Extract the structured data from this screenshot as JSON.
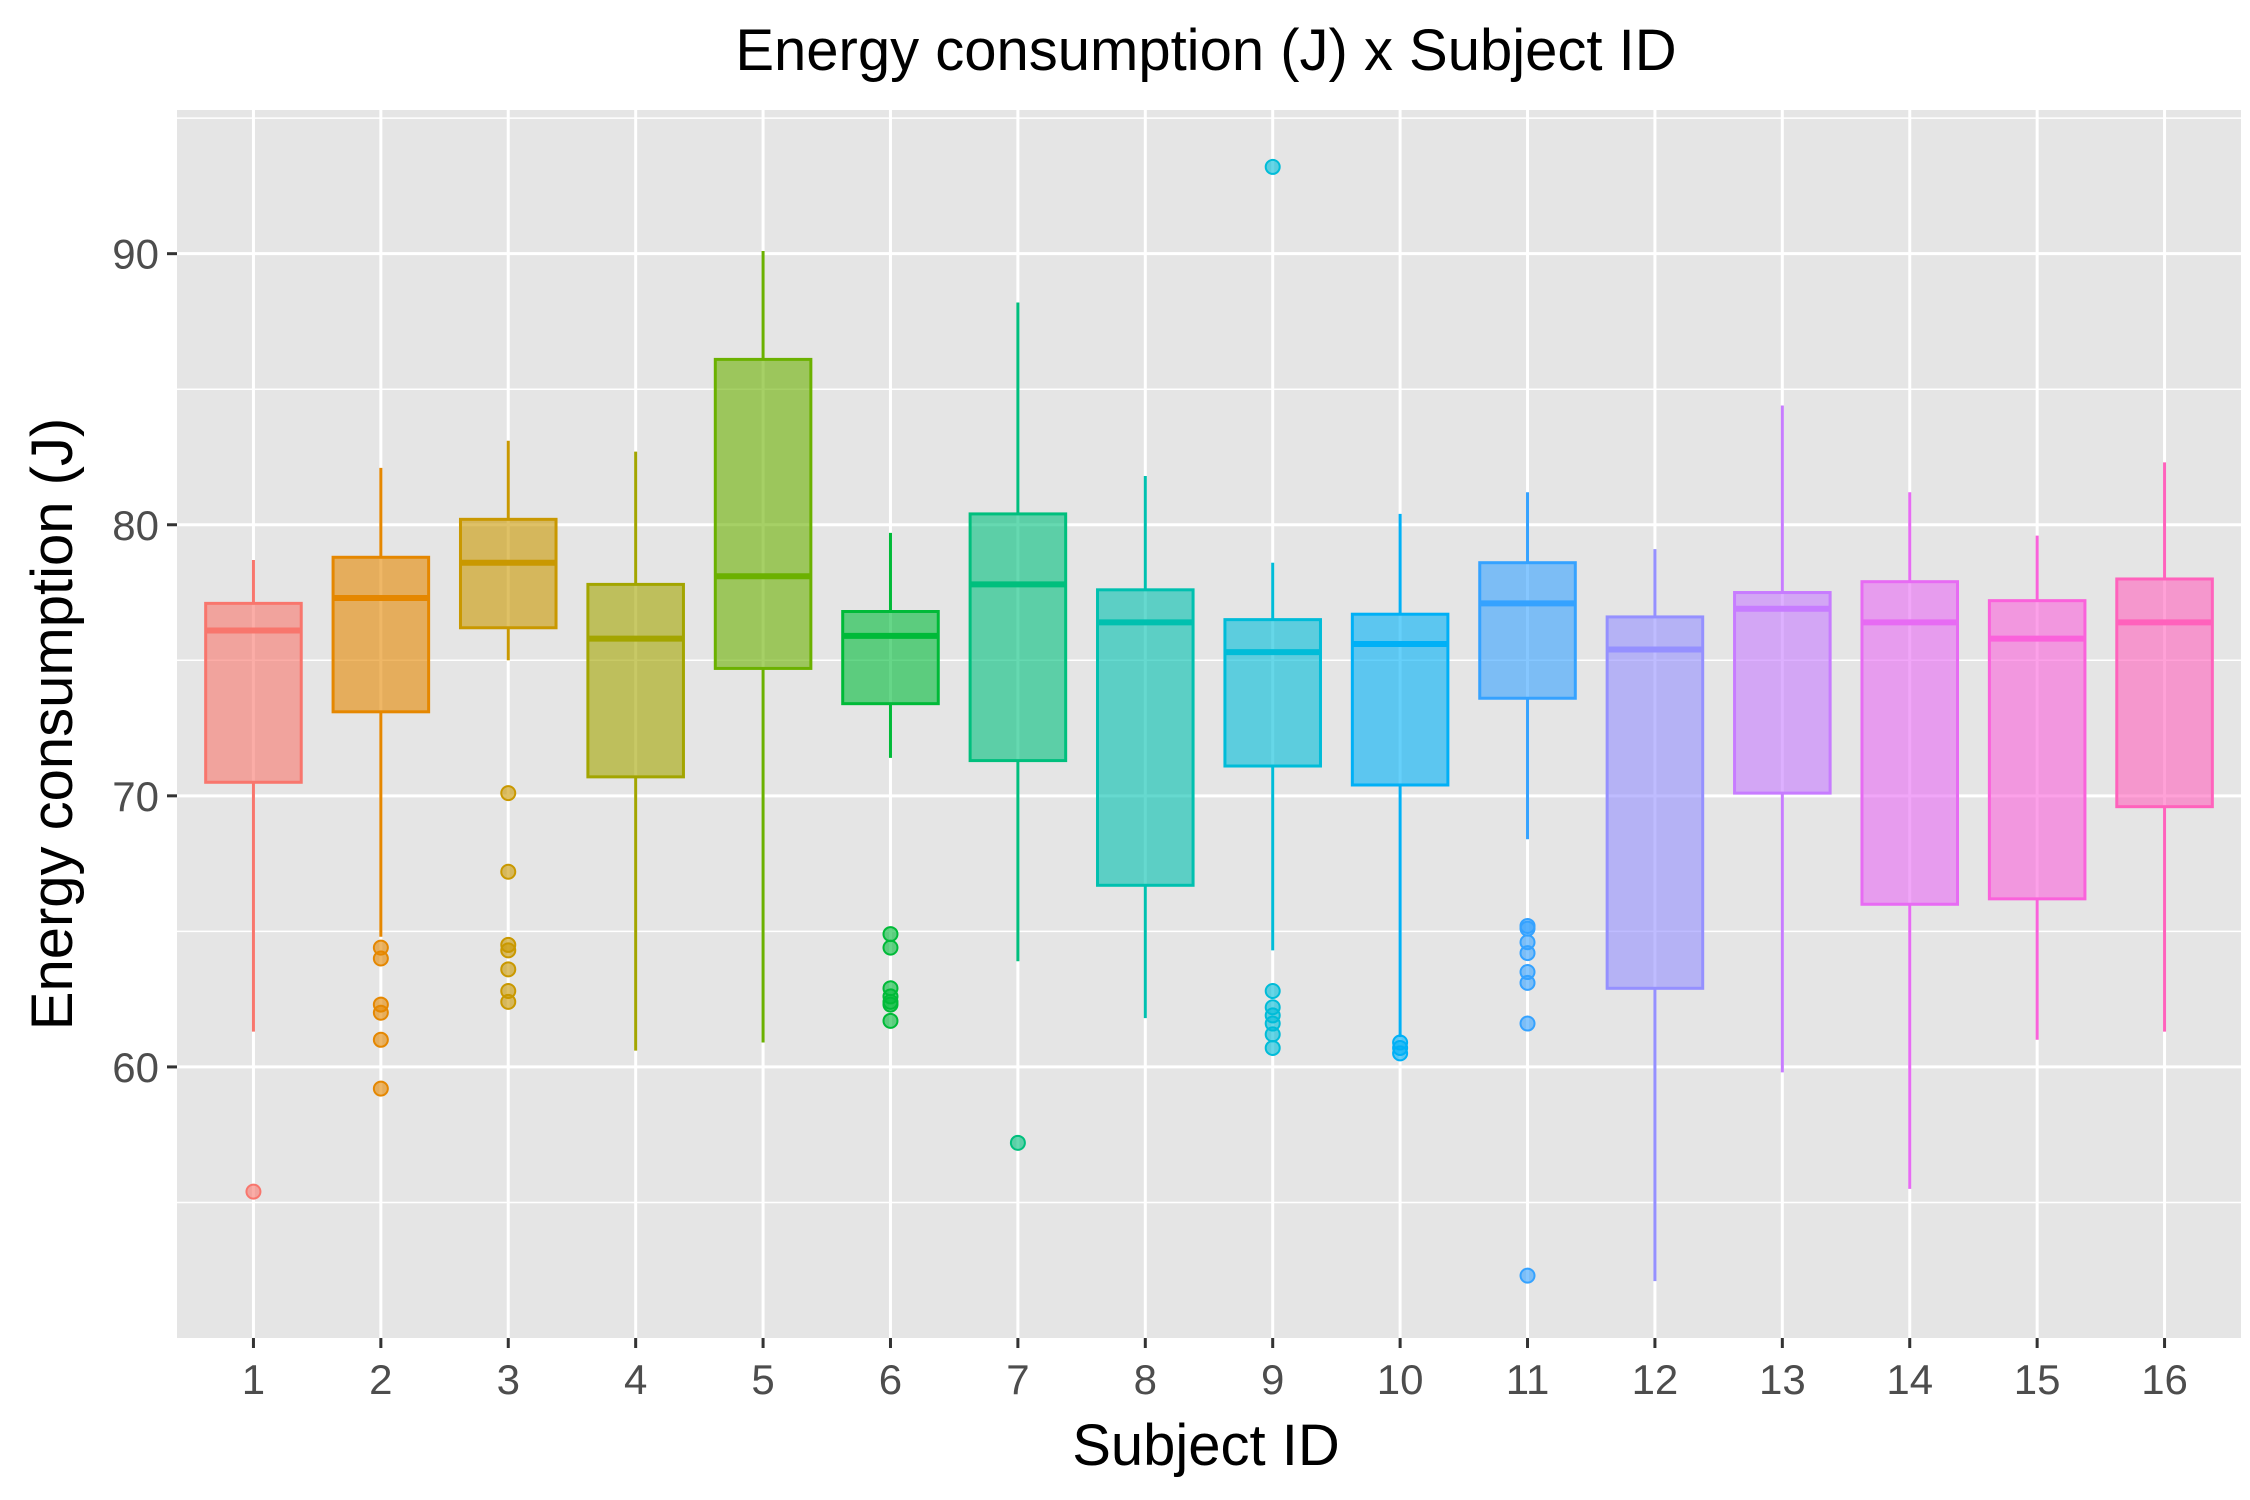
{
  "chart_data": {
    "type": "boxplot",
    "title": "Energy consumption (J) x Subject ID",
    "xlabel": "Subject ID",
    "ylabel": "Energy consumption (J)",
    "ylim": [
      50.0,
      95.3
    ],
    "yticks": [
      60,
      70,
      80,
      90
    ],
    "grid": true,
    "legend": "none",
    "panel_background": "#e5e5e5",
    "categories": [
      "1",
      "2",
      "3",
      "4",
      "5",
      "6",
      "7",
      "8",
      "9",
      "10",
      "11",
      "12",
      "13",
      "14",
      "15",
      "16"
    ],
    "boxes": [
      {
        "label": "1",
        "color": "#F8766D",
        "whisker_low": 61.3,
        "q1": 70.5,
        "median": 76.1,
        "q3": 77.1,
        "whisker_high": 78.7,
        "outliers": [
          55.4
        ]
      },
      {
        "label": "2",
        "color": "#E58700",
        "whisker_low": 64.8,
        "q1": 73.1,
        "median": 77.3,
        "q3": 78.8,
        "whisker_high": 82.1,
        "outliers": [
          64.4,
          64.0,
          62.3,
          62.0,
          61.0,
          59.2
        ]
      },
      {
        "label": "3",
        "color": "#C99800",
        "whisker_low": 75.0,
        "q1": 76.2,
        "median": 78.6,
        "q3": 80.2,
        "whisker_high": 83.1,
        "outliers": [
          70.1,
          67.2,
          64.5,
          64.3,
          63.6,
          62.8,
          62.4
        ]
      },
      {
        "label": "4",
        "color": "#A3A500",
        "whisker_low": 60.6,
        "q1": 70.7,
        "median": 75.8,
        "q3": 77.8,
        "whisker_high": 82.7,
        "outliers": []
      },
      {
        "label": "5",
        "color": "#6BB100",
        "whisker_low": 60.9,
        "q1": 74.7,
        "median": 78.1,
        "q3": 86.1,
        "whisker_high": 90.1,
        "outliers": []
      },
      {
        "label": "6",
        "color": "#00BA38",
        "whisker_low": 71.4,
        "q1": 73.4,
        "median": 75.9,
        "q3": 76.8,
        "whisker_high": 79.7,
        "outliers": [
          64.9,
          64.4,
          62.9,
          62.6,
          62.4,
          62.3,
          61.7
        ]
      },
      {
        "label": "7",
        "color": "#00BF7D",
        "whisker_low": 63.9,
        "q1": 71.3,
        "median": 77.8,
        "q3": 80.4,
        "whisker_high": 88.2,
        "outliers": [
          57.2
        ]
      },
      {
        "label": "8",
        "color": "#00C0AF",
        "whisker_low": 61.8,
        "q1": 66.7,
        "median": 76.4,
        "q3": 77.6,
        "whisker_high": 81.8,
        "outliers": []
      },
      {
        "label": "9",
        "color": "#00BCD8",
        "whisker_low": 64.3,
        "q1": 71.1,
        "median": 75.3,
        "q3": 76.5,
        "whisker_high": 78.6,
        "outliers": [
          93.2,
          62.8,
          62.2,
          61.9,
          61.6,
          61.2,
          60.7
        ]
      },
      {
        "label": "10",
        "color": "#00B0F6",
        "whisker_low": 61.1,
        "q1": 70.4,
        "median": 75.6,
        "q3": 76.7,
        "whisker_high": 80.4,
        "outliers": [
          60.9,
          60.7,
          60.5
        ]
      },
      {
        "label": "11",
        "color": "#35A2FF",
        "whisker_low": 68.4,
        "q1": 73.6,
        "median": 77.1,
        "q3": 78.6,
        "whisker_high": 81.2,
        "outliers": [
          65.2,
          65.1,
          64.6,
          64.2,
          63.5,
          63.1,
          61.6,
          52.3
        ]
      },
      {
        "label": "12",
        "color": "#9590FF",
        "whisker_low": 52.1,
        "q1": 62.9,
        "median": 75.4,
        "q3": 76.6,
        "whisker_high": 79.1,
        "outliers": []
      },
      {
        "label": "13",
        "color": "#C77CFF",
        "whisker_low": 59.8,
        "q1": 70.1,
        "median": 76.9,
        "q3": 77.5,
        "whisker_high": 84.4,
        "outliers": []
      },
      {
        "label": "14",
        "color": "#E76BF3",
        "whisker_low": 55.5,
        "q1": 66.0,
        "median": 76.4,
        "q3": 77.9,
        "whisker_high": 81.2,
        "outliers": []
      },
      {
        "label": "15",
        "color": "#FA62DB",
        "whisker_low": 61.0,
        "q1": 66.2,
        "median": 75.8,
        "q3": 77.2,
        "whisker_high": 79.6,
        "outliers": []
      },
      {
        "label": "16",
        "color": "#FF62BC",
        "whisker_low": 61.3,
        "q1": 69.6,
        "median": 76.4,
        "q3": 78.0,
        "whisker_high": 82.3,
        "outliers": []
      }
    ]
  }
}
